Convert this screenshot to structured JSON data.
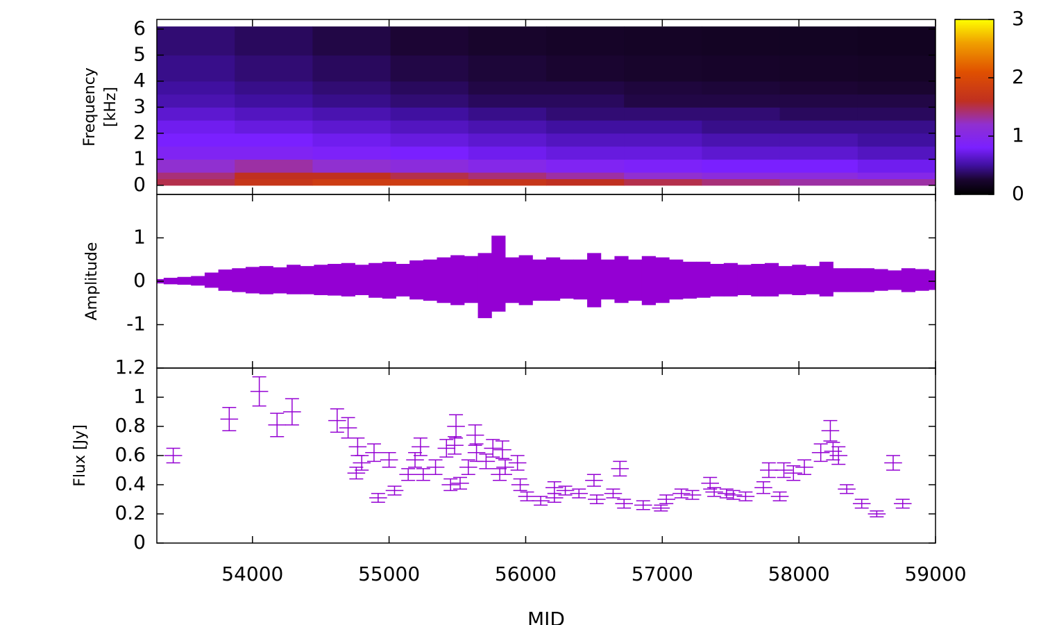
{
  "chart_data": [
    {
      "type": "heatmap",
      "ylabel": [
        "Frequency",
        "[kHz]"
      ],
      "xlim": [
        53300,
        59000
      ],
      "xticks": [
        54000,
        55000,
        56000,
        57000,
        58000,
        59000
      ],
      "ylim": [
        -0.35,
        6.37
      ],
      "yticks": [
        0,
        1,
        2,
        3,
        4,
        5,
        6
      ],
      "time_edges": [
        53300,
        53870,
        54440,
        55010,
        55580,
        56150,
        56720,
        57290,
        57860,
        58430,
        59000
      ],
      "freq_edges": [
        0,
        0.25,
        0.5,
        1,
        1.5,
        2,
        2.5,
        3,
        3.5,
        4,
        5,
        6.1
      ],
      "z": [
        [
          1.5,
          1.7,
          1.8,
          1.8,
          1.7,
          1.6,
          1.5,
          1.4,
          1.3,
          1.3
        ],
        [
          1.4,
          1.6,
          1.6,
          1.5,
          1.4,
          1.3,
          1.2,
          1.1,
          1.1,
          1.0
        ],
        [
          1.2,
          1.3,
          1.2,
          1.1,
          1.0,
          0.9,
          0.85,
          0.8,
          0.8,
          0.75
        ],
        [
          0.9,
          0.9,
          0.85,
          0.8,
          0.75,
          0.7,
          0.7,
          0.65,
          0.65,
          0.6
        ],
        [
          0.8,
          0.8,
          0.75,
          0.7,
          0.65,
          0.6,
          0.6,
          0.55,
          0.55,
          0.5
        ],
        [
          0.75,
          0.7,
          0.65,
          0.6,
          0.55,
          0.5,
          0.5,
          0.45,
          0.45,
          0.45
        ],
        [
          0.65,
          0.6,
          0.55,
          0.5,
          0.45,
          0.4,
          0.4,
          0.4,
          0.35,
          0.35
        ],
        [
          0.55,
          0.5,
          0.45,
          0.4,
          0.35,
          0.35,
          0.3,
          0.3,
          0.3,
          0.3
        ],
        [
          0.5,
          0.45,
          0.4,
          0.35,
          0.3,
          0.3,
          0.28,
          0.27,
          0.26,
          0.25
        ],
        [
          0.45,
          0.4,
          0.35,
          0.3,
          0.27,
          0.25,
          0.23,
          0.22,
          0.21,
          0.2
        ],
        [
          0.4,
          0.35,
          0.3,
          0.26,
          0.23,
          0.21,
          0.2,
          0.19,
          0.18,
          0.17
        ]
      ],
      "zlim": [
        0,
        3
      ],
      "zticks": [
        0,
        1,
        2,
        3
      ],
      "colormap": [
        {
          "value": 0,
          "color": "#000000"
        },
        {
          "value": 0.25,
          "color": "#1a0530"
        },
        {
          "value": 0.5,
          "color": "#4010a0"
        },
        {
          "value": 0.8,
          "color": "#7a20ff"
        },
        {
          "value": 1.2,
          "color": "#9030d0"
        },
        {
          "value": 1.6,
          "color": "#c03020"
        },
        {
          "value": 2.1,
          "color": "#e05000"
        },
        {
          "value": 2.6,
          "color": "#f0a000"
        },
        {
          "value": 3,
          "color": "#ffff00"
        }
      ]
    },
    {
      "type": "band",
      "ylabel": [
        "Amplitude"
      ],
      "color": "#9400d3",
      "xlim": [
        53300,
        59000
      ],
      "xticks": [
        54000,
        55000,
        56000,
        57000,
        58000,
        59000
      ],
      "ylim": [
        -2,
        2
      ],
      "yticks": [
        -1,
        0,
        1
      ],
      "x": [
        53300,
        53400,
        53500,
        53600,
        53700,
        53800,
        53900,
        54000,
        54100,
        54200,
        54300,
        54400,
        54500,
        54600,
        54700,
        54800,
        54900,
        55000,
        55100,
        55200,
        55300,
        55400,
        55500,
        55600,
        55700,
        55800,
        55900,
        56000,
        56100,
        56200,
        56300,
        56400,
        56500,
        56600,
        56700,
        56800,
        56900,
        57000,
        57100,
        57200,
        57300,
        57400,
        57500,
        57600,
        57700,
        57800,
        57900,
        58000,
        58100,
        58200,
        58300,
        58400,
        58500,
        58600,
        58700,
        58800,
        58900,
        59000
      ],
      "upper": [
        0.05,
        0.08,
        0.1,
        0.12,
        0.2,
        0.27,
        0.3,
        0.33,
        0.35,
        0.32,
        0.38,
        0.35,
        0.38,
        0.4,
        0.42,
        0.38,
        0.42,
        0.45,
        0.4,
        0.48,
        0.5,
        0.55,
        0.6,
        0.58,
        0.65,
        1.05,
        0.55,
        0.6,
        0.5,
        0.55,
        0.5,
        0.5,
        0.65,
        0.5,
        0.58,
        0.5,
        0.58,
        0.55,
        0.5,
        0.45,
        0.45,
        0.4,
        0.42,
        0.38,
        0.4,
        0.42,
        0.35,
        0.38,
        0.35,
        0.45,
        0.3,
        0.3,
        0.3,
        0.28,
        0.25,
        0.3,
        0.28,
        0.25
      ],
      "lower": [
        -0.05,
        -0.07,
        -0.08,
        -0.1,
        -0.15,
        -0.22,
        -0.25,
        -0.28,
        -0.3,
        -0.28,
        -0.3,
        -0.3,
        -0.32,
        -0.33,
        -0.35,
        -0.32,
        -0.38,
        -0.4,
        -0.35,
        -0.42,
        -0.45,
        -0.5,
        -0.55,
        -0.5,
        -0.85,
        -0.7,
        -0.5,
        -0.55,
        -0.45,
        -0.45,
        -0.4,
        -0.42,
        -0.6,
        -0.42,
        -0.5,
        -0.45,
        -0.55,
        -0.5,
        -0.42,
        -0.4,
        -0.38,
        -0.35,
        -0.35,
        -0.32,
        -0.35,
        -0.35,
        -0.3,
        -0.32,
        -0.3,
        -0.35,
        -0.25,
        -0.25,
        -0.25,
        -0.22,
        -0.2,
        -0.25,
        -0.22,
        -0.2
      ]
    },
    {
      "type": "errorbar",
      "ylabel": [
        "Flux [Jy]"
      ],
      "xlabel": "MJD",
      "color": "#9400d3",
      "xlim": [
        53300,
        59000
      ],
      "xticks": [
        54000,
        55000,
        56000,
        57000,
        58000,
        59000
      ],
      "ylim": [
        0,
        1.2
      ],
      "yticks": [
        0,
        0.2,
        0.4,
        0.6,
        0.8,
        1,
        1.2
      ],
      "xerr": 65,
      "x": [
        53420,
        53830,
        54050,
        54180,
        54290,
        54620,
        54700,
        54770,
        54760,
        54800,
        54890,
        54920,
        55000,
        55040,
        55140,
        55190,
        55230,
        55250,
        55340,
        55420,
        55450,
        55490,
        55480,
        55520,
        55580,
        55630,
        55640,
        55710,
        55760,
        55810,
        55830,
        55850,
        55940,
        55960,
        56010,
        56110,
        56210,
        56210,
        56290,
        56390,
        56500,
        56520,
        56640,
        56690,
        56720,
        56860,
        56990,
        57030,
        57140,
        57220,
        57350,
        57380,
        57470,
        57520,
        57610,
        57740,
        57780,
        57860,
        57890,
        57960,
        58040,
        58160,
        58230,
        58250,
        58290,
        58350,
        58460,
        58570,
        58690,
        58760
      ],
      "values": [
        0.6,
        0.85,
        1.04,
        0.81,
        0.9,
        0.84,
        0.79,
        0.66,
        0.48,
        0.55,
        0.62,
        0.31,
        0.57,
        0.36,
        0.47,
        0.57,
        0.66,
        0.47,
        0.52,
        0.65,
        0.4,
        0.8,
        0.67,
        0.41,
        0.52,
        0.74,
        0.62,
        0.56,
        0.65,
        0.47,
        0.64,
        0.52,
        0.55,
        0.4,
        0.32,
        0.29,
        0.31,
        0.38,
        0.36,
        0.34,
        0.43,
        0.3,
        0.34,
        0.51,
        0.27,
        0.26,
        0.24,
        0.3,
        0.34,
        0.33,
        0.41,
        0.35,
        0.34,
        0.33,
        0.32,
        0.38,
        0.5,
        0.32,
        0.5,
        0.48,
        0.52,
        0.62,
        0.77,
        0.63,
        0.6,
        0.37,
        0.27,
        0.2,
        0.55,
        0.27
      ],
      "yerr": [
        0.05,
        0.08,
        0.1,
        0.08,
        0.09,
        0.08,
        0.07,
        0.06,
        0.04,
        0.05,
        0.06,
        0.03,
        0.05,
        0.03,
        0.04,
        0.05,
        0.06,
        0.04,
        0.05,
        0.06,
        0.04,
        0.08,
        0.06,
        0.04,
        0.05,
        0.07,
        0.06,
        0.05,
        0.06,
        0.04,
        0.06,
        0.05,
        0.05,
        0.04,
        0.03,
        0.03,
        0.03,
        0.04,
        0.03,
        0.03,
        0.04,
        0.03,
        0.03,
        0.05,
        0.03,
        0.03,
        0.02,
        0.03,
        0.03,
        0.03,
        0.04,
        0.03,
        0.03,
        0.03,
        0.03,
        0.04,
        0.05,
        0.03,
        0.05,
        0.05,
        0.05,
        0.06,
        0.07,
        0.06,
        0.06,
        0.03,
        0.03,
        0.02,
        0.05,
        0.03
      ]
    }
  ]
}
